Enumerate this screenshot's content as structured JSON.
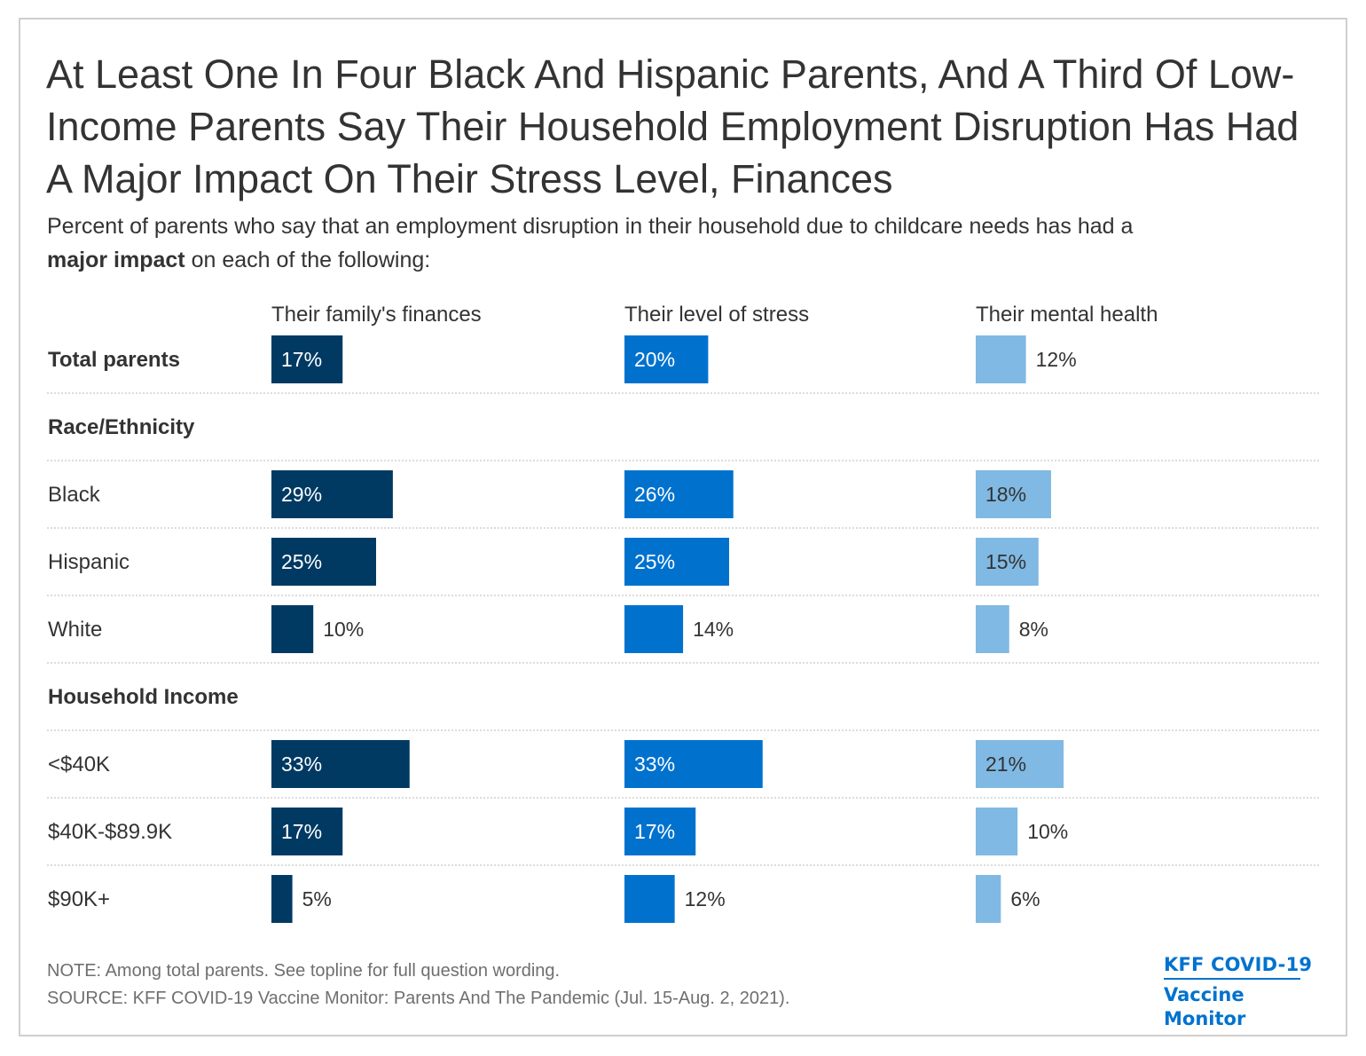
{
  "title": "At Least One In Four Black And Hispanic Parents, And A Third Of Low-Income Parents Say Their Household Employment Disruption Has Had A Major Impact On Their Stress Level, Finances",
  "subtitle": {
    "before": "Percent of parents who say that an employment disruption in their household due to childcare needs has had a",
    "bold": "major impact",
    "after": "on each of the following:"
  },
  "chart_data": {
    "type": "bar",
    "orientation": "horizontal",
    "series": [
      {
        "name": "Their family's finances",
        "color": "#003a63"
      },
      {
        "name": "Their level of stress",
        "color": "#0072ce"
      },
      {
        "name": "Their mental health",
        "color": "#80b9e3"
      }
    ],
    "rows": [
      {
        "label": "Total parents",
        "bold": true,
        "values": [
          17,
          20,
          12
        ],
        "display": [
          "17%",
          "20%",
          "12%"
        ]
      },
      {
        "label": "Race/Ethnicity",
        "header": true
      },
      {
        "label": "Black",
        "values": [
          29,
          26,
          18
        ],
        "display": [
          "29%",
          "26%",
          "18%"
        ]
      },
      {
        "label": "Hispanic",
        "values": [
          25,
          25,
          15
        ],
        "display": [
          "25%",
          "25%",
          "15%"
        ]
      },
      {
        "label": "White",
        "values": [
          10,
          14,
          8
        ],
        "display": [
          "10%",
          "14%",
          "8%"
        ]
      },
      {
        "label": "Household Income",
        "header": true
      },
      {
        "label": "<$40K",
        "values": [
          33,
          33,
          21
        ],
        "display": [
          "33%",
          "33%",
          "21%"
        ]
      },
      {
        "label": "$40K-$89.9K",
        "values": [
          17,
          17,
          10
        ],
        "display": [
          "17%",
          "17%",
          "10%"
        ]
      },
      {
        "label": "$90K+",
        "values": [
          5,
          12,
          6
        ],
        "display": [
          "5%",
          "12%",
          "6%"
        ]
      }
    ],
    "value_unit": "%",
    "grid": false
  },
  "footer": {
    "note": "NOTE: Among total parents. See topline for full question wording.",
    "source": "SOURCE: KFF COVID-19 Vaccine Monitor: Parents And The Pandemic (Jul. 15-Aug. 2, 2021)."
  },
  "logo": {
    "line1": "KFF COVID-19",
    "line2": "Vaccine Monitor",
    "color": "#0072ce"
  }
}
